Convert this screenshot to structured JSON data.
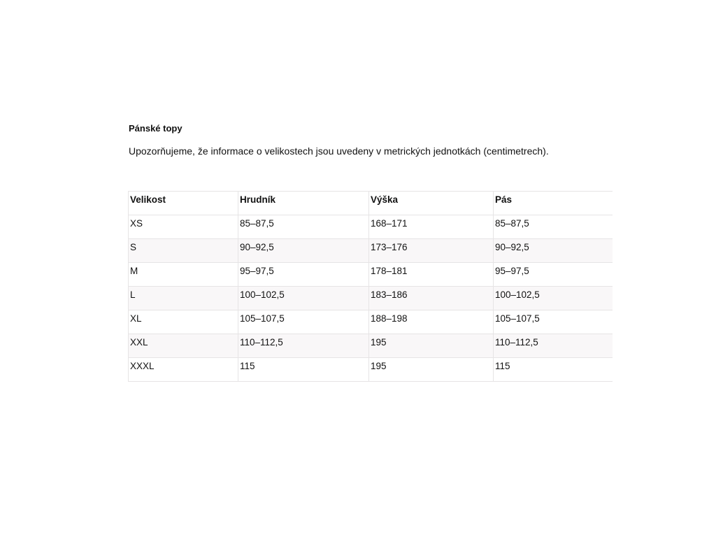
{
  "title": "Pánské topy",
  "note": "Upozorňujeme, že informace o velikostech jsou uvedeny v metrických jednotkách (centimetrech).",
  "table": {
    "headers": [
      "Velikost",
      "Hrudník",
      "Výška",
      "Pás"
    ],
    "rows": [
      [
        "XS",
        "85–87,5",
        "168–171",
        "85–87,5"
      ],
      [
        "S",
        "90–92,5",
        "173–176",
        "90–92,5"
      ],
      [
        "M",
        "95–97,5",
        "178–181",
        "95–97,5"
      ],
      [
        "L",
        "100–102,5",
        "183–186",
        "100–102,5"
      ],
      [
        "XL",
        "105–107,5",
        "188–198",
        "105–107,5"
      ],
      [
        "XXL",
        "110–112,5",
        "195",
        "110–112,5"
      ],
      [
        "XXXL",
        "115",
        "195",
        "115"
      ]
    ]
  }
}
